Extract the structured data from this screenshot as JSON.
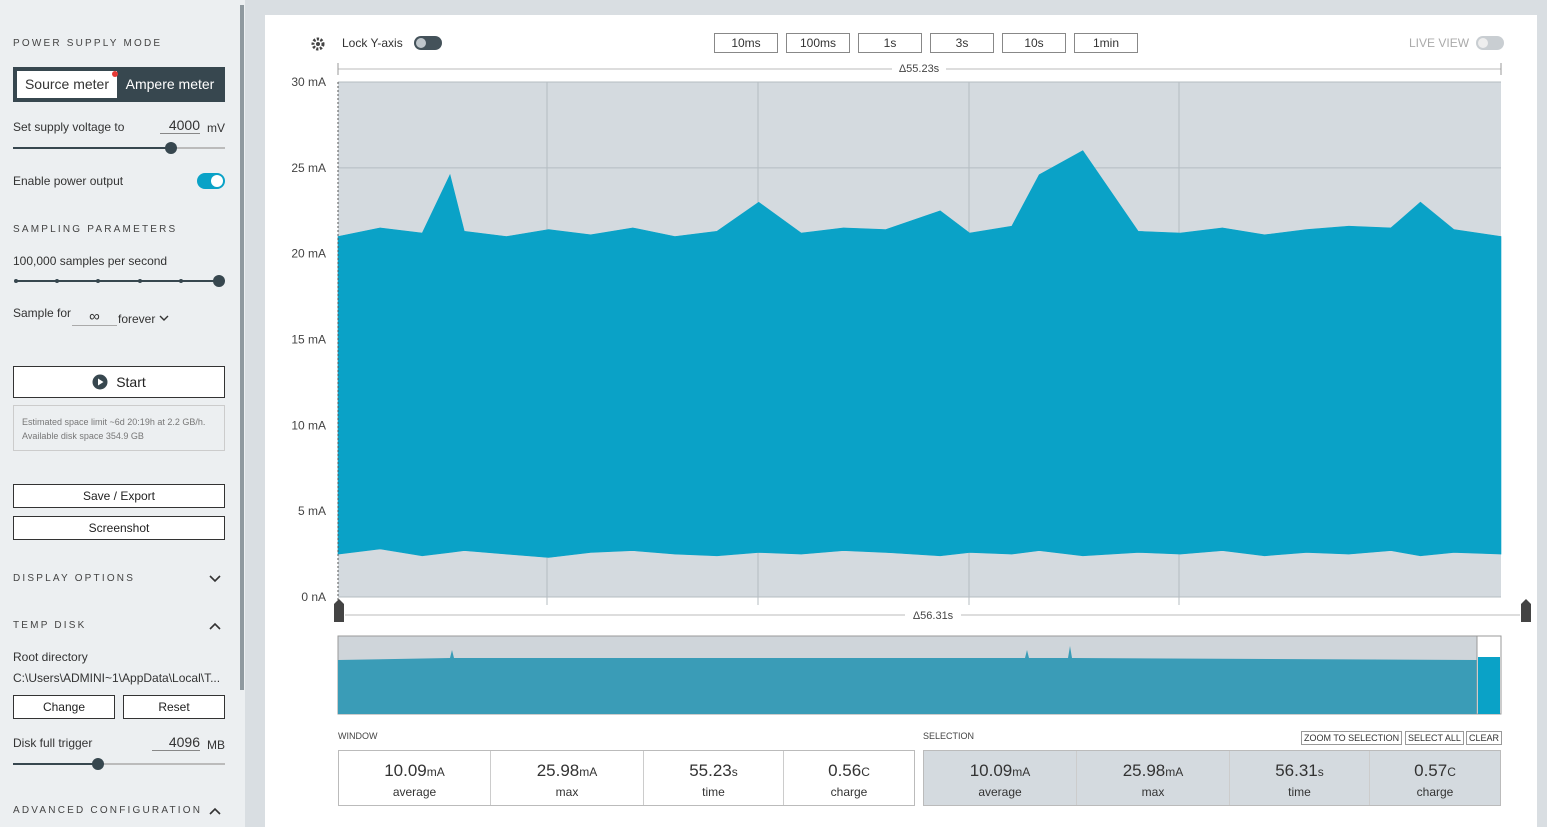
{
  "sidebar": {
    "power_supply_mode": {
      "heading": "POWER SUPPLY MODE",
      "options": [
        "Source meter",
        "Ampere meter"
      ]
    },
    "supply_voltage": {
      "label": "Set supply voltage to",
      "value": "4000",
      "unit": "mV"
    },
    "enable_output": "Enable power output",
    "sampling": {
      "heading": "SAMPLING PARAMETERS",
      "rate": "100,000 samples per second",
      "sample_for": "Sample for",
      "duration": "∞",
      "duration_unit": "forever"
    },
    "start": "Start",
    "estimate": "Estimated space limit ~6d 20:19h at 2.2 GB/h. Available disk space 354.9 GB",
    "save": "Save / Export",
    "screenshot": "Screenshot",
    "display_options": "DISPLAY OPTIONS",
    "temp_disk": {
      "heading": "TEMP DISK",
      "root_label": "Root directory",
      "root_path": "C:\\Users\\ADMINI~1\\AppData\\Local\\T...",
      "change": "Change",
      "reset": "Reset",
      "trigger_label": "Disk full trigger",
      "trigger_value": "4096",
      "trigger_unit": "MB"
    },
    "advanced": "ADVANCED CONFIGURATION"
  },
  "toolbar": {
    "lock": "Lock Y-axis",
    "ranges": [
      "10ms",
      "100ms",
      "1s",
      "3s",
      "10s",
      "1min"
    ],
    "live": "LIVE VIEW"
  },
  "chart": {
    "window_delta": "Δ55.23s",
    "total_delta": "Δ56.31s",
    "ylim": [
      0,
      30
    ],
    "yticks": [
      {
        "value": 0,
        "label": "0 nA"
      },
      {
        "value": 5,
        "label": "5 mA"
      },
      {
        "value": 10,
        "label": "10 mA"
      },
      {
        "value": 15,
        "label": "15 mA"
      },
      {
        "value": 20,
        "label": "20 mA"
      },
      {
        "value": 25,
        "label": "25 mA"
      },
      {
        "value": 30,
        "label": "30 mA"
      }
    ],
    "xlim": [
      0,
      55.23
    ],
    "x": [
      0,
      2,
      4,
      5.32,
      6,
      8,
      10,
      12,
      14,
      16,
      18,
      19.98,
      22,
      24,
      26,
      28.6,
      30,
      32,
      33.3,
      35.37,
      38,
      40,
      42,
      44,
      46,
      48,
      50,
      51.4,
      53,
      55.23
    ],
    "upper": [
      21,
      21.5,
      21.2,
      24.6,
      21.3,
      21,
      21.4,
      21.1,
      21.5,
      21,
      21.3,
      23,
      21.2,
      21.5,
      21.4,
      22.5,
      21.2,
      21.6,
      24.6,
      26,
      21.3,
      21.2,
      21.5,
      21.1,
      21.4,
      21.6,
      21.5,
      23,
      21.4,
      21
    ],
    "lower": [
      2.5,
      2.8,
      2.4,
      2.6,
      2.7,
      2.5,
      2.3,
      2.6,
      2.7,
      2.5,
      2.4,
      2.6,
      2.5,
      2.7,
      2.6,
      2.4,
      2.6,
      2.5,
      2.7,
      2.4,
      2.6,
      2.5,
      2.7,
      2.4,
      2.6,
      2.5,
      2.7,
      2.4,
      2.6,
      2.5
    ],
    "color": "#0aa2c7"
  },
  "window": {
    "label": "WINDOW",
    "stats": [
      {
        "value": "10.09",
        "unit": "mA",
        "label": "average"
      },
      {
        "value": "25.98",
        "unit": "mA",
        "label": "max"
      },
      {
        "value": "55.23",
        "unit": "s",
        "label": "time"
      },
      {
        "value": "0.56",
        "unit": "C",
        "label": "charge"
      }
    ]
  },
  "selection": {
    "label": "SELECTION",
    "actions": [
      "ZOOM TO SELECTION",
      "SELECT ALL",
      "CLEAR"
    ],
    "stats": [
      {
        "value": "10.09",
        "unit": "mA",
        "label": "average"
      },
      {
        "value": "25.98",
        "unit": "mA",
        "label": "max"
      },
      {
        "value": "56.31",
        "unit": "s",
        "label": "time"
      },
      {
        "value": "0.57",
        "unit": "C",
        "label": "charge"
      }
    ]
  }
}
